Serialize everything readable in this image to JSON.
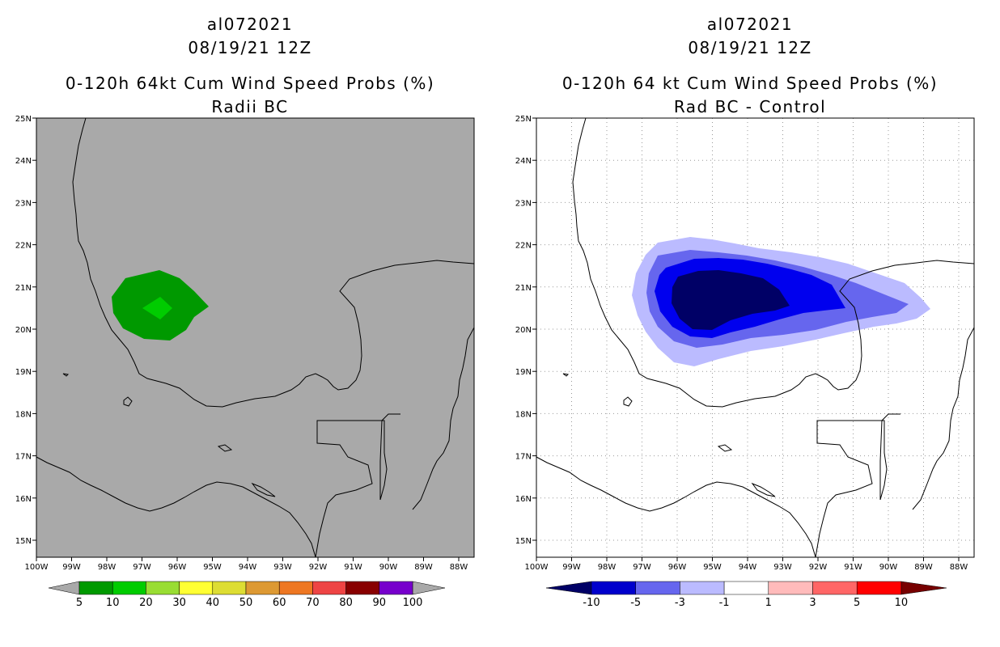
{
  "left_panel": {
    "storm_id": "al072021",
    "datetime": "08/19/21 12Z",
    "product": "0-120h 64kt Cum Wind Speed Probs (%)",
    "subtitle": "Radii BC",
    "background_color": "#a9a9a9",
    "colorbar": {
      "colors": [
        "#009900",
        "#00cc00",
        "#99dd33",
        "#ffff33",
        "#dddd33",
        "#dd9933",
        "#ee7722",
        "#ee4444",
        "#880000",
        "#7700cc"
      ],
      "labels": [
        "5",
        "10",
        "20",
        "30",
        "40",
        "50",
        "60",
        "70",
        "80",
        "90",
        "100"
      ]
    }
  },
  "right_panel": {
    "storm_id": "al072021",
    "datetime": "08/19/21 12Z",
    "product": "0-120h 64 kt Cum Wind Speed Probs (%)",
    "subtitle": "Rad BC - Control",
    "background_color": "#ffffff",
    "colorbar": {
      "colors": [
        "#0000cc",
        "#6666ee",
        "#bbbbff",
        "#ffffff",
        "#ffbbbb",
        "#ff6666",
        "#ff0000"
      ],
      "end_colors": [
        "#000066",
        "#770000"
      ],
      "labels": [
        "-10",
        "-5",
        "-3",
        "-1",
        "1",
        "3",
        "5",
        "10"
      ]
    }
  },
  "map": {
    "lat_labels": [
      "25N",
      "24N",
      "23N",
      "22N",
      "21N",
      "20N",
      "19N",
      "18N",
      "17N",
      "16N",
      "15N"
    ],
    "lon_labels": [
      "100W",
      "99W",
      "98W",
      "97W",
      "96W",
      "95W",
      "94W",
      "93W",
      "92W",
      "91W",
      "90W",
      "89W",
      "88W"
    ]
  }
}
